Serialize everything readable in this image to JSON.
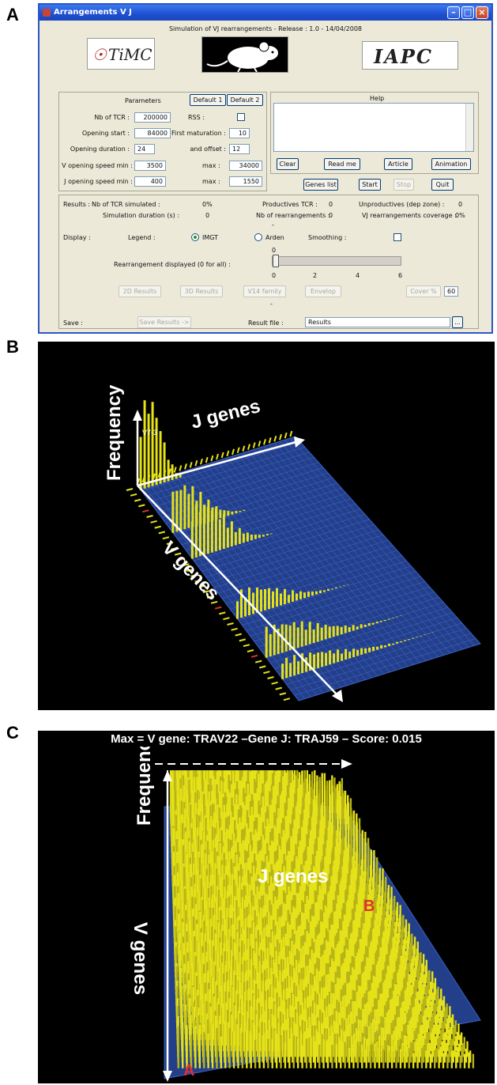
{
  "panel_labels": {
    "a": "A",
    "b": "B",
    "c": "C"
  },
  "window": {
    "title": "Arrangements V J",
    "subtitle": "Simulation of VJ rearrangements - Release : 1.0 - 14/04/2008",
    "logos": {
      "left": "TiMC",
      "right": "IAPC"
    },
    "icons": {
      "app": "app-icon",
      "minimize": "minimize-icon",
      "maximize": "maximize-icon",
      "close": "close-icon",
      "mouse_logo": "mouse-icon"
    }
  },
  "parameters": {
    "header": "Parameters",
    "default1": "Default 1",
    "default2": "Default 2",
    "nb_tcr_label": "Nb of TCR :",
    "nb_tcr_value": "200000",
    "rss_label": "RSS :",
    "opening_start_label": "Opening start :",
    "opening_start_value": "84000",
    "first_maturation_label": "First maturation :",
    "first_maturation_value": "10",
    "opening_duration_label": "Opening duration :",
    "opening_duration_value": "24",
    "offset_label": "and offset :",
    "offset_value": "12",
    "v_speed_label": "V opening speed min :",
    "v_speed_min": "3500",
    "v_max_label": "max :",
    "v_speed_max": "34000",
    "j_speed_label": "J opening speed min :",
    "j_speed_min": "400",
    "j_max_label": "max :",
    "j_speed_max": "1550"
  },
  "help": {
    "header": "Help",
    "clear": "Clear",
    "read_me": "Read me",
    "article": "Article",
    "animation": "Animation"
  },
  "actions": {
    "genes_list": "Genes list",
    "start": "Start",
    "stop": "Stop",
    "quit": "Quit"
  },
  "results": {
    "label": "Results :",
    "nb_tcr_sim_label": "Nb of TCR simulated :",
    "nb_tcr_sim_value": "0%",
    "productives_label": "Productives TCR :",
    "productives_value": "0",
    "unproductives_label": "Unproductives (dep zone) :",
    "unproductives_value": "0",
    "duration_label": "Simulation duration (s) :",
    "duration_value": "0",
    "nb_rearr_label": "Nb of rearrangements :",
    "nb_rearr_value": "0",
    "coverage_label": "VJ rearrangements coverage :",
    "coverage_value": "0%",
    "dash1": "-",
    "dash2": "-"
  },
  "display": {
    "label": "Display :",
    "legend_label": "Legend :",
    "imgt": "IMGT",
    "arden": "Arden",
    "smoothing_label": "Smoothing :",
    "rearr_label": "Rearrangement displayed (0 for all) :",
    "slider_value": "0",
    "slider_ticks": [
      "0",
      "2",
      "4",
      "6"
    ],
    "btn_2d": "2D Results",
    "btn_3d": "3D Results",
    "btn_v14": "V14 family",
    "btn_envelop": "Envelop",
    "btn_cover": "Cover %",
    "cover_value": "60"
  },
  "save": {
    "label": "Save :",
    "save_results": "Save Results ->",
    "result_file_label": "Result file :",
    "result_file_value": "Results",
    "browse": "..."
  },
  "plot_b": {
    "ylabel": "Frequency",
    "xlabel": "J genes",
    "vlabel": "V genes",
    "marker": "V7-3"
  },
  "plot_c": {
    "title": "Max = V gene: TRAV22 –Gene J: TRAJ59 – Score: 0.015",
    "ylabel": "Frequency",
    "xlabel": "J genes",
    "vlabel": "V genes",
    "point_a": "A",
    "point_b": "B"
  },
  "colors": {
    "bars": "#e6e21a",
    "grid": "#2f55b8",
    "marker": "#e03030"
  }
}
